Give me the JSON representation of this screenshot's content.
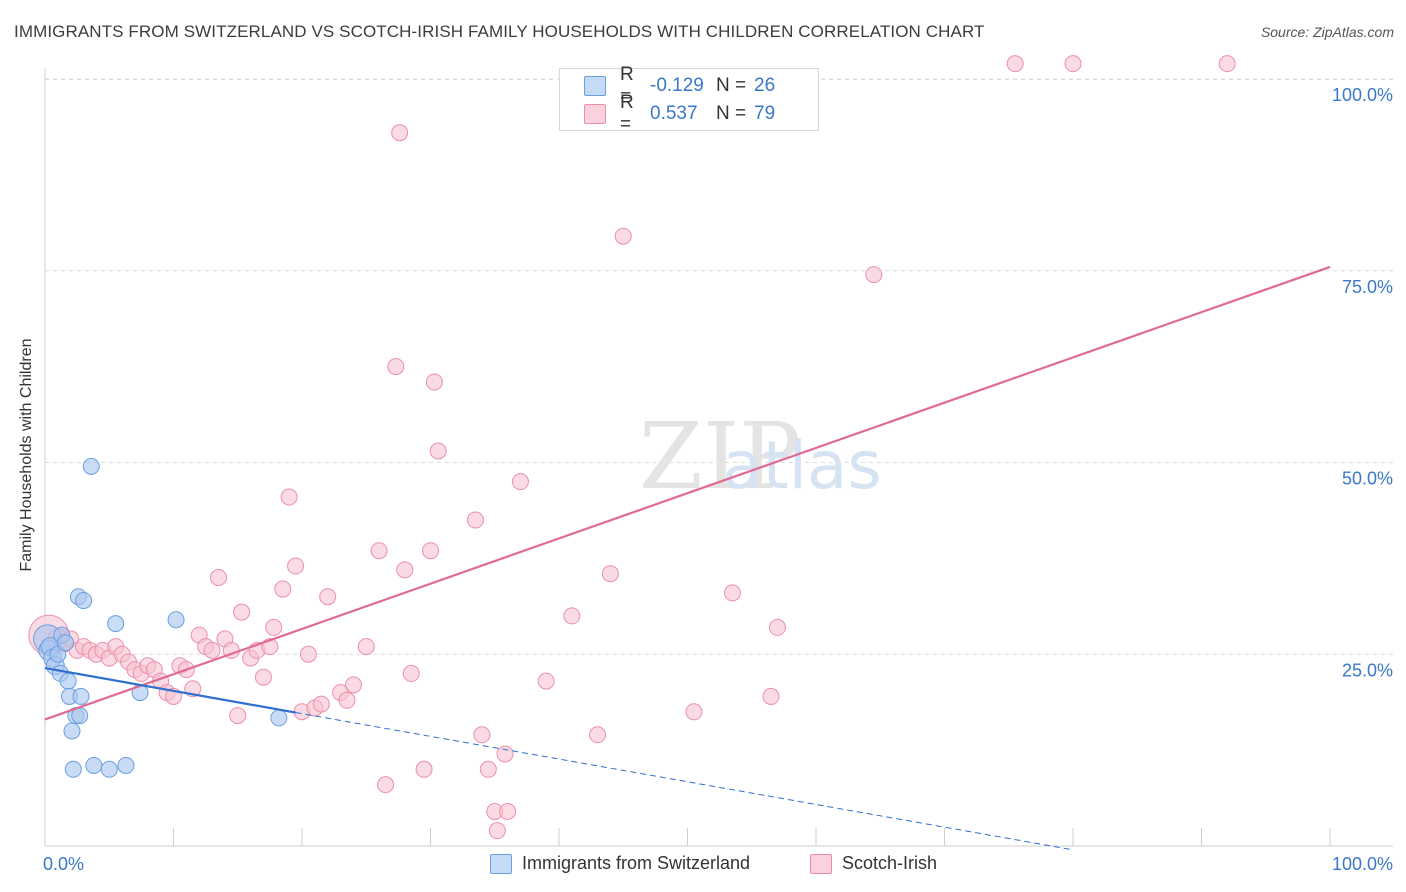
{
  "title": "IMMIGRANTS FROM SWITZERLAND VS SCOTCH-IRISH FAMILY HOUSEHOLDS WITH CHILDREN CORRELATION CHART",
  "source": "Source: ZipAtlas.com",
  "watermark": {
    "zip": "ZIP",
    "atlas": "atlas"
  },
  "legend_top": [
    {
      "r_label": "R =",
      "r_value": "-0.129",
      "n_label": "N =",
      "n_value": "26",
      "color": "#a9c7ef"
    },
    {
      "r_label": "R =",
      "r_value": "0.537",
      "n_label": "N =",
      "n_value": "79",
      "color": "#f7bfd0"
    }
  ],
  "legend_bottom": [
    {
      "label": "Immigrants from Switzerland",
      "color": "#a9c7ef"
    },
    {
      "label": "Scotch-Irish",
      "color": "#f7bfd0"
    }
  ],
  "colors": {
    "blue_fill": "#a9c7ef",
    "blue_stroke": "#6a9fe0",
    "blue_line": "#2e6fd0",
    "pink_fill": "#f7c3d2",
    "pink_stroke": "#ec8fab",
    "pink_line": "#e06a93",
    "tick_text": "#3a78c9",
    "grid": "#dcdcdc"
  },
  "chart_data": {
    "type": "scatter",
    "title": "IMMIGRANTS FROM SWITZERLAND VS SCOTCH-IRISH FAMILY HOUSEHOLDS WITH CHILDREN CORRELATION CHART",
    "xlabel": "",
    "ylabel": "Family Households with Children",
    "xlim": [
      0,
      100
    ],
    "ylim": [
      0,
      105
    ],
    "x_tick_labels": [
      {
        "value": 0,
        "label": "0.0%"
      },
      {
        "value": 100,
        "label": "100.0%"
      }
    ],
    "y_tick_labels": [
      {
        "value": 25,
        "label": "25.0%"
      },
      {
        "value": 50,
        "label": "50.0%"
      },
      {
        "value": 75,
        "label": "75.0%"
      },
      {
        "value": 100,
        "label": "100.0%"
      }
    ],
    "series": [
      {
        "name": "Immigrants from Switzerland",
        "R": -0.129,
        "N": 26,
        "trend": {
          "x0": 0,
          "y0": 23.2,
          "x1": 19.5,
          "y1": 17.4,
          "dash_to_x": 80,
          "dash_to_y": -0.5
        },
        "points": [
          [
            0.2,
            27.0,
            14
          ],
          [
            0.3,
            25.5,
            10
          ],
          [
            0.4,
            26.0,
            9
          ],
          [
            0.6,
            24.5,
            9
          ],
          [
            0.8,
            23.5,
            9
          ],
          [
            1.0,
            25.0,
            8
          ],
          [
            1.2,
            22.5,
            8
          ],
          [
            1.3,
            27.5,
            8
          ],
          [
            1.6,
            26.5,
            8
          ],
          [
            1.8,
            21.5,
            8
          ],
          [
            1.9,
            19.5,
            8
          ],
          [
            2.1,
            15.0,
            8
          ],
          [
            2.2,
            10.0,
            8
          ],
          [
            2.4,
            17.0,
            8
          ],
          [
            2.6,
            32.5,
            8
          ],
          [
            2.7,
            17.0,
            8
          ],
          [
            2.8,
            19.5,
            8
          ],
          [
            3.0,
            32.0,
            8
          ],
          [
            3.6,
            49.5,
            8
          ],
          [
            3.8,
            10.5,
            8
          ],
          [
            5.0,
            10.0,
            8
          ],
          [
            5.5,
            29.0,
            8
          ],
          [
            6.3,
            10.5,
            8
          ],
          [
            7.4,
            20.0,
            8
          ],
          [
            10.2,
            29.5,
            8
          ],
          [
            18.2,
            16.7,
            8
          ]
        ]
      },
      {
        "name": "Scotch-Irish",
        "R": 0.537,
        "N": 79,
        "trend": {
          "x0": 0,
          "y0": 16.5,
          "x1": 100,
          "y1": 75.5
        },
        "points": [
          [
            0.3,
            27.5,
            20
          ],
          [
            1.0,
            27.0,
            10
          ],
          [
            1.5,
            26.5,
            9
          ],
          [
            2.0,
            27.0,
            8
          ],
          [
            2.5,
            25.5,
            8
          ],
          [
            3.0,
            26.0,
            8
          ],
          [
            3.5,
            25.5,
            8
          ],
          [
            4.0,
            25.0,
            8
          ],
          [
            4.5,
            25.5,
            8
          ],
          [
            5.0,
            24.5,
            8
          ],
          [
            5.5,
            26.0,
            8
          ],
          [
            6.0,
            25.0,
            8
          ],
          [
            6.5,
            24.0,
            8
          ],
          [
            7.0,
            23.0,
            8
          ],
          [
            7.5,
            22.5,
            8
          ],
          [
            8.0,
            23.5,
            8
          ],
          [
            8.5,
            23.0,
            8
          ],
          [
            9.0,
            21.5,
            8
          ],
          [
            9.5,
            20.0,
            8
          ],
          [
            10.0,
            19.5,
            8
          ],
          [
            10.5,
            23.5,
            8
          ],
          [
            11.0,
            23.0,
            8
          ],
          [
            11.5,
            20.5,
            8
          ],
          [
            12.0,
            27.5,
            8
          ],
          [
            12.5,
            26.0,
            8
          ],
          [
            13.0,
            25.5,
            8
          ],
          [
            13.5,
            35.0,
            8
          ],
          [
            14.0,
            27.0,
            8
          ],
          [
            14.5,
            25.5,
            8
          ],
          [
            15.0,
            17.0,
            8
          ],
          [
            15.3,
            30.5,
            8
          ],
          [
            16.0,
            24.5,
            8
          ],
          [
            16.5,
            25.5,
            8
          ],
          [
            17.0,
            22.0,
            8
          ],
          [
            17.5,
            26.0,
            8
          ],
          [
            17.8,
            28.5,
            8
          ],
          [
            18.5,
            33.5,
            8
          ],
          [
            19.0,
            45.5,
            8
          ],
          [
            19.5,
            36.5,
            8
          ],
          [
            20.0,
            17.5,
            8
          ],
          [
            20.5,
            25.0,
            8
          ],
          [
            21.0,
            18.0,
            8
          ],
          [
            21.5,
            18.5,
            8
          ],
          [
            22.0,
            32.5,
            8
          ],
          [
            23.0,
            20.0,
            8
          ],
          [
            23.5,
            19.0,
            8
          ],
          [
            24.0,
            21.0,
            8
          ],
          [
            25.0,
            26.0,
            8
          ],
          [
            26.0,
            38.5,
            8
          ],
          [
            26.5,
            8.0,
            8
          ],
          [
            27.3,
            62.5,
            8
          ],
          [
            27.6,
            93.0,
            8
          ],
          [
            28.0,
            36.0,
            8
          ],
          [
            28.5,
            22.5,
            8
          ],
          [
            29.5,
            10.0,
            8
          ],
          [
            30.0,
            38.5,
            8
          ],
          [
            30.3,
            60.5,
            8
          ],
          [
            30.6,
            51.5,
            8
          ],
          [
            33.5,
            42.5,
            8
          ],
          [
            34.0,
            14.5,
            8
          ],
          [
            34.5,
            10.0,
            8
          ],
          [
            35.0,
            4.5,
            8
          ],
          [
            35.2,
            2.0,
            8
          ],
          [
            35.8,
            12.0,
            8
          ],
          [
            36.0,
            4.5,
            8
          ],
          [
            37.0,
            47.5,
            8
          ],
          [
            39.0,
            21.5,
            8
          ],
          [
            41.0,
            30.0,
            8
          ],
          [
            43.0,
            14.5,
            8
          ],
          [
            44.0,
            35.5,
            8
          ],
          [
            45.0,
            79.5,
            8
          ],
          [
            50.5,
            17.5,
            8
          ],
          [
            53.5,
            33.0,
            8
          ],
          [
            56.5,
            19.5,
            8
          ],
          [
            57.0,
            28.5,
            8
          ],
          [
            64.5,
            74.5,
            8
          ],
          [
            75.5,
            102.0,
            8
          ],
          [
            80.0,
            102.0,
            8
          ],
          [
            92.0,
            102.0,
            8
          ]
        ]
      }
    ]
  }
}
